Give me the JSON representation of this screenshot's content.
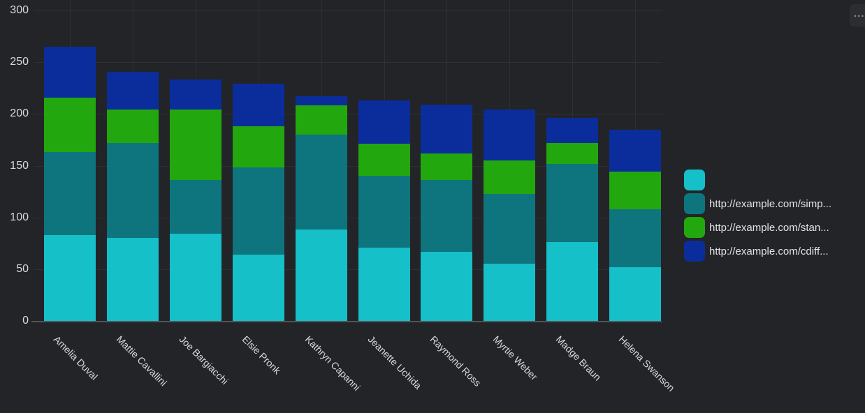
{
  "panel": {
    "background": "#232428",
    "text_color": "#d8d9da",
    "menu_button_label": "..."
  },
  "chart_data": {
    "type": "bar",
    "stacked": true,
    "orientation": "vertical",
    "title": "",
    "xlabel": "",
    "ylabel": "",
    "ylim": [
      0,
      300
    ],
    "yticks": [
      0,
      50,
      100,
      150,
      200,
      250,
      300
    ],
    "grid": true,
    "legend_position": "right",
    "categories": [
      "Amelia Duval",
      "Mattie Cavallini",
      "Joe Bargiacchi",
      "Elsie Pronk",
      "Kathryn Capanni",
      "Jeanette Uchida",
      "Raymond Ross",
      "Myrtie Weber",
      "Madge Braun",
      "Helena Swanson"
    ],
    "series": [
      {
        "name": "",
        "color": "#15c0c9",
        "values": [
          83,
          80,
          84,
          64,
          88,
          71,
          67,
          55,
          76,
          52
        ]
      },
      {
        "name": "http://example.com/simp...",
        "color": "#0e747e",
        "values": [
          80,
          92,
          52,
          84,
          92,
          69,
          69,
          68,
          76,
          56
        ]
      },
      {
        "name": "http://example.com/stan...",
        "color": "#23a70e",
        "values": [
          53,
          32,
          68,
          40,
          28,
          31,
          26,
          32,
          20,
          36
        ]
      },
      {
        "name": "http://example.com/cdiff...",
        "color": "#0b2d9b",
        "values": [
          49,
          37,
          29,
          41,
          9,
          42,
          47,
          49,
          24,
          41
        ]
      }
    ],
    "totals": [
      265,
      241,
      233,
      229,
      217,
      213,
      209,
      204,
      196,
      185
    ]
  }
}
